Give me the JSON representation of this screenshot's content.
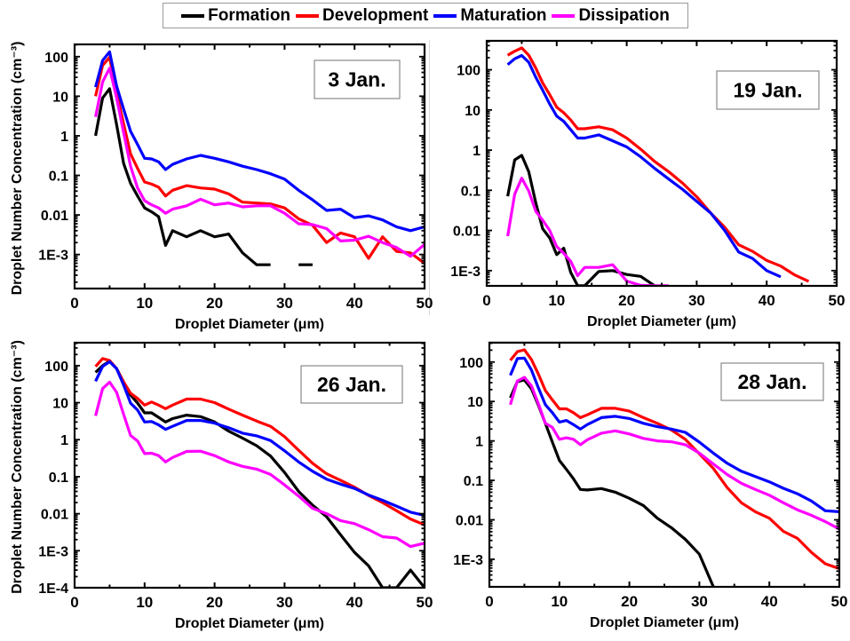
{
  "legend": {
    "items": [
      {
        "label": "Formation",
        "color": "#000000"
      },
      {
        "label": "Development",
        "color": "#ff0000"
      },
      {
        "label": "Maturation",
        "color": "#0000ff"
      },
      {
        "label": "Dissipation",
        "color": "#ff00ff"
      }
    ]
  },
  "chart_data": [
    {
      "type": "line",
      "title": "3 Jan.",
      "xlabel": "Droplet Diameter (μm)",
      "ylabel": "Droplet Number Concentration (cm⁻³)",
      "yscale": "log",
      "xlim": [
        0,
        50
      ],
      "ylim": [
        0.000138,
        204
      ],
      "xticks": [
        0,
        10,
        20,
        30,
        40,
        50
      ],
      "xtick_labels": [
        "0",
        "10",
        "20",
        "30",
        "40",
        "50"
      ],
      "yticks": [
        100,
        10,
        1,
        0.1,
        0.01,
        0.001
      ],
      "ytick_labels": [
        "100",
        "10",
        "1",
        "0.1",
        "0.01",
        "1E-3"
      ],
      "grid": false,
      "show_ylabel": true,
      "x": [
        3,
        4,
        5,
        6,
        7,
        8,
        9,
        10,
        11,
        12,
        13,
        14,
        16,
        18,
        20,
        22,
        24,
        26,
        28,
        30,
        32,
        34,
        36,
        38,
        40,
        42,
        44,
        46,
        48,
        50
      ],
      "series": [
        {
          "name": "Formation",
          "values": [
            1.0,
            9,
            15.5,
            1.9,
            0.2,
            0.063,
            0.03,
            0.015,
            0.012,
            0.009,
            0.0017,
            0.004,
            0.0028,
            0.004,
            0.0028,
            0.0033,
            0.0011,
            0.00055,
            0.00055,
            null,
            0.00055,
            0.00055,
            null,
            null,
            null,
            null,
            null,
            null,
            null,
            null
          ]
        },
        {
          "name": "Development",
          "values": [
            10,
            60,
            96,
            12,
            2.0,
            0.35,
            0.15,
            0.068,
            0.06,
            0.05,
            0.03,
            0.042,
            0.055,
            0.048,
            0.045,
            0.034,
            0.021,
            0.02,
            0.019,
            0.015,
            0.008,
            0.0055,
            0.002,
            0.0035,
            0.0028,
            0.0008,
            0.0028,
            0.0012,
            0.0011,
            0.0006
          ]
        },
        {
          "name": "Maturation",
          "values": [
            17,
            80,
            132,
            18,
            4.7,
            1.3,
            0.6,
            0.27,
            0.26,
            0.22,
            0.14,
            0.19,
            0.26,
            0.32,
            0.27,
            0.22,
            0.17,
            0.14,
            0.11,
            0.08,
            0.042,
            0.024,
            0.013,
            0.014,
            0.0085,
            0.0095,
            0.0075,
            0.005,
            0.004,
            0.005
          ]
        },
        {
          "name": "Dissipation",
          "values": [
            3,
            23,
            51,
            9,
            1.2,
            0.17,
            0.048,
            0.023,
            0.018,
            0.015,
            0.011,
            0.014,
            0.017,
            0.025,
            0.018,
            0.02,
            0.016,
            0.017,
            0.017,
            0.011,
            0.006,
            0.0057,
            0.0045,
            0.0022,
            0.0023,
            0.0029,
            0.002,
            0.0015,
            0.0009,
            0.0018
          ]
        }
      ]
    },
    {
      "type": "line",
      "title": "19 Jan.",
      "xlabel": "Droplet Diameter (μm)",
      "ylabel": "",
      "yscale": "log",
      "xlim": [
        0,
        50
      ],
      "ylim": [
        0.000417,
        525
      ],
      "xticks": [
        0,
        10,
        20,
        30,
        40,
        50
      ],
      "xtick_labels": [
        "0",
        "10",
        "20",
        "30",
        "40",
        "50"
      ],
      "yticks": [
        100,
        10,
        1,
        0.1,
        0.01,
        0.001
      ],
      "ytick_labels": [
        "100",
        "10",
        "1",
        "0.1",
        "0.01",
        "1E-3"
      ],
      "grid": false,
      "show_ylabel": false,
      "x": [
        3,
        4,
        5,
        6,
        7,
        8,
        9,
        10,
        11,
        12,
        13,
        14,
        16,
        18,
        20,
        22,
        24,
        26,
        28,
        30,
        32,
        34,
        36,
        38,
        40,
        42,
        44,
        46,
        48,
        50
      ],
      "series": [
        {
          "name": "Formation",
          "values": [
            0.071,
            0.57,
            0.74,
            0.29,
            0.049,
            0.011,
            0.0065,
            0.0025,
            0.0036,
            0.0009,
            0.00042,
            0.00042,
            0.00095,
            0.001,
            0.0008,
            0.00072,
            0.00042,
            null,
            null,
            null,
            null,
            null,
            null,
            null,
            null,
            null,
            null,
            null,
            null,
            null
          ]
        },
        {
          "name": "Development",
          "values": [
            230,
            290,
            350,
            230,
            110,
            47,
            24,
            11.7,
            8.5,
            5.6,
            3.4,
            3.4,
            3.8,
            3.2,
            2.0,
            1.05,
            0.52,
            0.29,
            0.15,
            0.069,
            0.027,
            0.012,
            0.0044,
            0.003,
            0.0018,
            0.0013,
            0.00078,
            0.00054,
            null,
            null
          ]
        },
        {
          "name": "Maturation",
          "values": [
            134,
            188,
            227,
            154,
            65,
            31,
            14,
            7,
            5.2,
            3.2,
            2.0,
            2.0,
            2.4,
            1.7,
            1.2,
            0.68,
            0.35,
            0.19,
            0.105,
            0.053,
            0.027,
            0.01,
            0.0029,
            0.002,
            0.001,
            0.0007,
            null,
            null,
            null,
            null
          ]
        },
        {
          "name": "Dissipation",
          "values": [
            0.0072,
            0.08,
            0.2,
            0.096,
            0.03,
            0.018,
            0.01,
            0.004,
            0.0027,
            0.0017,
            0.00075,
            0.0012,
            0.0012,
            0.0014,
            0.00055,
            0.00043,
            0.00042,
            0.00042,
            null,
            null,
            null,
            null,
            null,
            null,
            null,
            null,
            null,
            null,
            null,
            null
          ]
        }
      ]
    },
    {
      "type": "line",
      "title": "26 Jan.",
      "xlabel": "Droplet Diameter (μm)",
      "ylabel": "Droplet Number Concentration (cm⁻³)",
      "yscale": "log",
      "xlim": [
        0,
        50
      ],
      "ylim": [
        0.0001,
        417
      ],
      "xticks": [
        0,
        10,
        20,
        30,
        40,
        50
      ],
      "xtick_labels": [
        "0",
        "10",
        "20",
        "30",
        "40",
        "50"
      ],
      "yticks": [
        100,
        10,
        1,
        0.1,
        0.01,
        0.001,
        0.0001
      ],
      "ytick_labels": [
        "100",
        "10",
        "1",
        "0.1",
        "0.01",
        "1E-3",
        "1E-4"
      ],
      "grid": false,
      "show_ylabel": true,
      "x": [
        3,
        4,
        5,
        6,
        7,
        8,
        9,
        10,
        11,
        12,
        13,
        14,
        16,
        18,
        20,
        22,
        24,
        26,
        28,
        30,
        32,
        34,
        36,
        38,
        40,
        42,
        44,
        46,
        48,
        50
      ],
      "series": [
        {
          "name": "Formation",
          "values": [
            66,
            100,
            132,
            83,
            36,
            16,
            9.7,
            5.3,
            5.3,
            4.0,
            3.0,
            3.7,
            4.6,
            4.2,
            3.0,
            1.7,
            1.1,
            0.69,
            0.36,
            0.13,
            0.04,
            0.017,
            0.0083,
            0.0027,
            0.0009,
            0.00039,
            0.0001,
            0.0001,
            0.0003,
            0.0001
          ]
        },
        {
          "name": "Development",
          "values": [
            95,
            155,
            138,
            83,
            36,
            18,
            13,
            8.6,
            10.4,
            8.6,
            6.9,
            8.6,
            12.5,
            12.5,
            10,
            6.7,
            4.6,
            3.2,
            2.3,
            1.2,
            0.52,
            0.23,
            0.12,
            0.08,
            0.052,
            0.031,
            0.02,
            0.012,
            0.0072,
            0.005
          ]
        },
        {
          "name": "Maturation",
          "values": [
            38,
            95,
            128,
            83,
            30,
            9.7,
            6.3,
            3.0,
            3.1,
            2.5,
            1.9,
            2.3,
            3.3,
            3.3,
            2.8,
            2.1,
            1.5,
            1.27,
            0.95,
            0.5,
            0.25,
            0.14,
            0.086,
            0.063,
            0.048,
            0.032,
            0.023,
            0.016,
            0.011,
            0.009
          ]
        },
        {
          "name": "Dissipation",
          "values": [
            4.4,
            24,
            36,
            19,
            4.8,
            1.3,
            0.92,
            0.42,
            0.43,
            0.37,
            0.25,
            0.33,
            0.48,
            0.49,
            0.37,
            0.25,
            0.19,
            0.16,
            0.115,
            0.06,
            0.03,
            0.014,
            0.01,
            0.0065,
            0.0054,
            0.0037,
            0.0024,
            0.0022,
            0.0013,
            0.0016
          ]
        }
      ]
    },
    {
      "type": "line",
      "title": "28 Jan.",
      "xlabel": "Droplet Diameter (μm)",
      "ylabel": "",
      "yscale": "log",
      "xlim": [
        0,
        50
      ],
      "ylim": [
        0.0002,
        309
      ],
      "xticks": [
        0,
        10,
        20,
        30,
        40,
        50
      ],
      "xtick_labels": [
        "0",
        "10",
        "20",
        "30",
        "40",
        "50"
      ],
      "yticks": [
        100,
        10,
        1,
        0.1,
        0.01,
        0.001
      ],
      "ytick_labels": [
        "100",
        "10",
        "1",
        "0.1",
        "0.01",
        "1E-3"
      ],
      "grid": false,
      "show_ylabel": false,
      "x": [
        3,
        4,
        5,
        6,
        7,
        8,
        9,
        10,
        11,
        12,
        13,
        14,
        16,
        18,
        20,
        22,
        24,
        26,
        28,
        30,
        32,
        34,
        36,
        38,
        40,
        42,
        44,
        46,
        48,
        50
      ],
      "series": [
        {
          "name": "Formation",
          "values": [
            12.4,
            32,
            35,
            21,
            8.0,
            2.8,
            0.93,
            0.32,
            0.19,
            0.11,
            0.059,
            0.057,
            0.062,
            0.05,
            0.035,
            0.023,
            0.011,
            0.0063,
            0.0032,
            0.00135,
            0.0002,
            null,
            null,
            null,
            null,
            null,
            null,
            null,
            null,
            null
          ]
        },
        {
          "name": "Development",
          "values": [
            110,
            183,
            204,
            116,
            49,
            19,
            11,
            6.5,
            6.5,
            5.2,
            3.9,
            4.6,
            6.7,
            6.7,
            5.7,
            3.9,
            2.8,
            1.9,
            1.1,
            0.47,
            0.2,
            0.065,
            0.027,
            0.016,
            0.011,
            0.0051,
            0.0034,
            0.0015,
            0.00077,
            0.00058
          ]
        },
        {
          "name": "Maturation",
          "values": [
            46,
            122,
            126,
            63,
            22,
            8.3,
            5.2,
            3.0,
            3.3,
            2.6,
            2.0,
            2.6,
            3.9,
            4.2,
            3.7,
            2.8,
            2.3,
            2.0,
            1.65,
            0.93,
            0.49,
            0.27,
            0.17,
            0.125,
            0.092,
            0.063,
            0.046,
            0.03,
            0.017,
            0.016
          ]
        },
        {
          "name": "Dissipation",
          "values": [
            8.3,
            33,
            41,
            25,
            8.7,
            2.8,
            2.2,
            1.1,
            1.2,
            1.1,
            0.8,
            1.07,
            1.57,
            1.8,
            1.5,
            1.16,
            1.0,
            0.95,
            0.8,
            0.49,
            0.26,
            0.14,
            0.084,
            0.059,
            0.042,
            0.027,
            0.018,
            0.013,
            0.009,
            0.0058
          ]
        }
      ]
    }
  ]
}
